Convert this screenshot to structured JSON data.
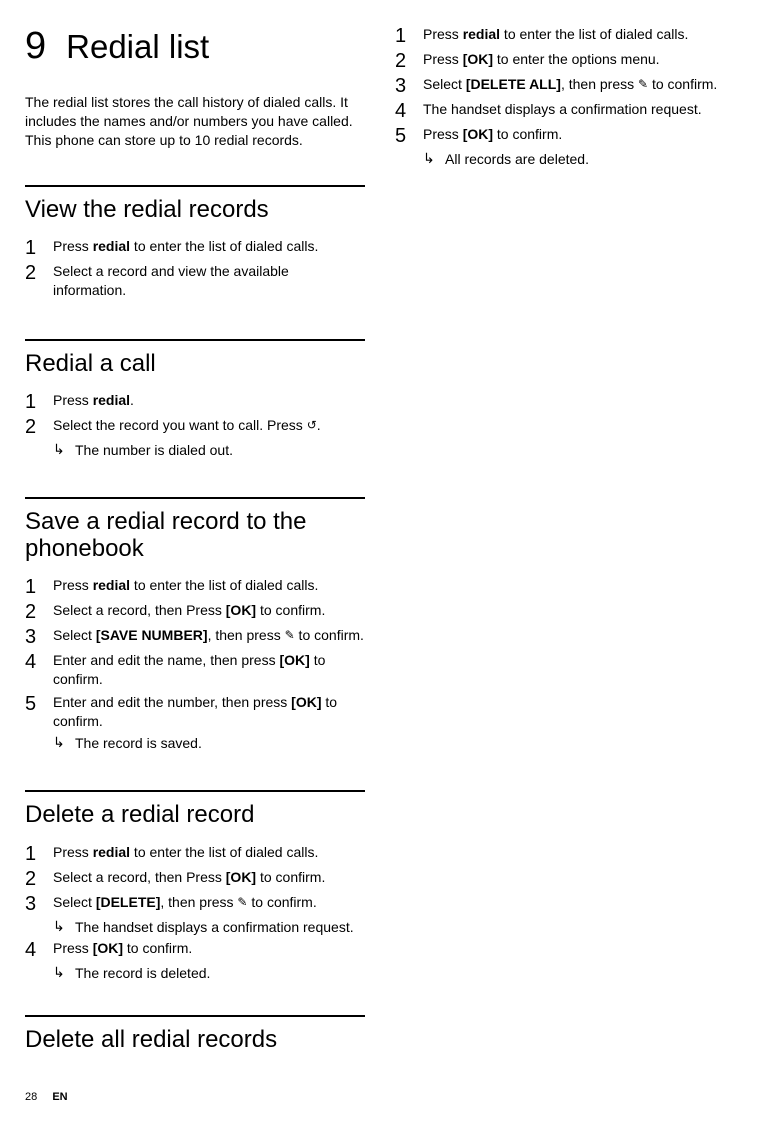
{
  "chapter": {
    "number": "9",
    "title": "Redial list"
  },
  "intro": "The redial list stores the call history of dialed calls. It includes the names and/or numbers you have called. This phone can store up to 10 redial records.",
  "sections": {
    "view": {
      "title": "View the redial records",
      "step1_a": "Press ",
      "step1_b": "redial",
      "step1_c": " to enter the list of dialed calls.",
      "step2": "Select a record and view the available information."
    },
    "redial": {
      "title": "Redial a call",
      "step1_a": "Press ",
      "step1_b": "redial",
      "step1_c": ".",
      "step2": "Select the record you want to call. Press ",
      "step2_key": "↺",
      "step2_end": ".",
      "sub": "The number is dialed out."
    },
    "save": {
      "title": "Save a redial record to the phonebook",
      "step1_a": "Press ",
      "step1_b": "redial",
      "step1_c": " to enter the list of dialed calls.",
      "step2_a": "Select a record, then Press ",
      "step2_b": "[OK]",
      "step2_c": " to confirm.",
      "step3_a": "Select ",
      "step3_b": "[SAVE NUMBER]",
      "step3_c": ", then press ",
      "step3_key": "✎",
      "step3_d": " to confirm.",
      "step4_a": "Enter and edit the name, then press ",
      "step4_b": "[OK]",
      "step4_c": " to confirm.",
      "step5_a": "Enter and edit the number, then press ",
      "step5_b": "[OK]",
      "step5_c": " to confirm.",
      "sub": "The record is saved."
    },
    "delete": {
      "title": "Delete a redial record",
      "step1_a": "Press ",
      "step1_b": "redial",
      "step1_c": " to enter the list of dialed calls.",
      "step2_a": "Select a record, then Press ",
      "step2_b": "[OK]",
      "step2_c": " to confirm.",
      "step3_a": "Select ",
      "step3_b": "[DELETE]",
      "step3_c": ", then press ",
      "step3_key": "✎",
      "step3_d": " to confirm.",
      "sub3": "The handset displays a confirmation request.",
      "step4_a": "Press ",
      "step4_b": "[OK]",
      "step4_c": " to confirm.",
      "sub4": "The record is deleted."
    },
    "deleteall": {
      "title": "Delete all redial records",
      "step1_a": "Press ",
      "step1_b": "redial",
      "step1_c": " to enter the list of dialed calls.",
      "step2_a": "Press ",
      "step2_b": "[OK]",
      "step2_c": " to enter the options menu.",
      "step3_a": "Select ",
      "step3_b": "[DELETE ALL]",
      "step3_c": ", then press ",
      "step3_key": "✎",
      "step3_d": " to confirm.",
      "step4": "The handset displays a confirmation request.",
      "step5_a": "Press ",
      "step5_b": "[OK]",
      "step5_c": " to confirm.",
      "sub5": "All records are deleted."
    }
  },
  "footer": {
    "page": "28",
    "lang": "EN"
  }
}
